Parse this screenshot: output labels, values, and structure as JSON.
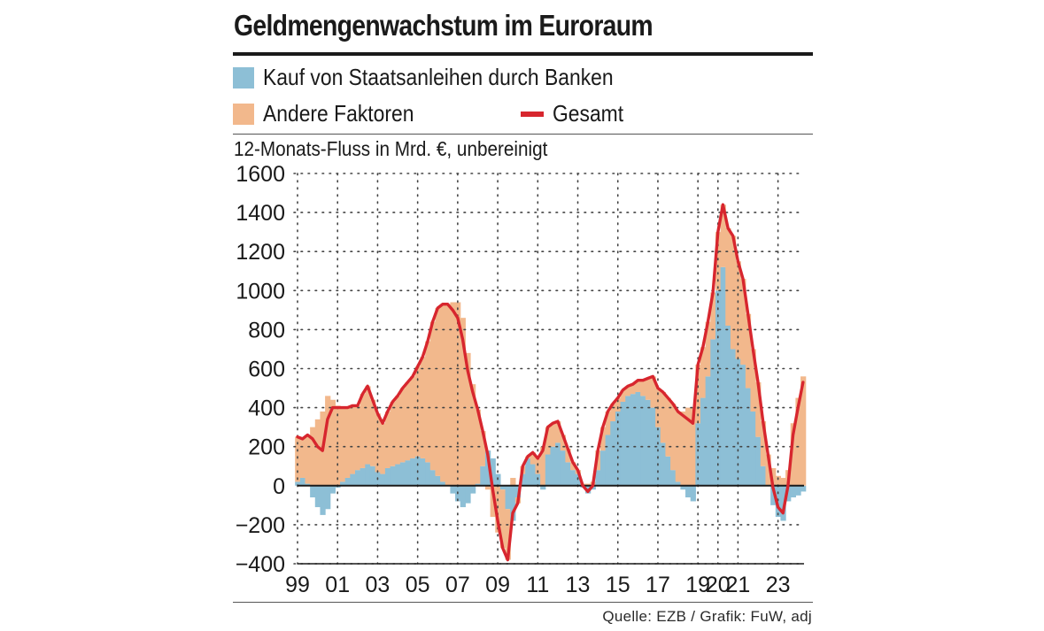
{
  "header": {
    "title": "Geldmengenwachstum im Euroraum"
  },
  "legend": {
    "banks_label": "Kauf von Staatsanleihen durch Banken",
    "other_label": "Andere Faktoren",
    "total_label": "Gesamt"
  },
  "subtitle": "12-Monats-Fluss in Mrd. €, unbereinigt",
  "footer": {
    "source": "Quelle: EZB / Grafik: FuW, adj"
  },
  "colors": {
    "banks": "#8dbfd6",
    "other": "#f2b88c",
    "total": "#d7262e",
    "text": "#1a1a1a",
    "grid": "#444444"
  },
  "chart_data": {
    "type": "area",
    "title": "Geldmengenwachstum im Euroraum",
    "ylabel": "12-Monats-Fluss in Mrd. €, unbereinigt",
    "xlabel": "",
    "ylim": [
      -400,
      1600
    ],
    "xlim": [
      1999.0,
      2024.3
    ],
    "y_ticks": [
      -400,
      -200,
      0,
      200,
      400,
      600,
      800,
      1000,
      1200,
      1400,
      1600
    ],
    "x_ticks": [
      {
        "year": 1999,
        "label": "99"
      },
      {
        "year": 2001,
        "label": "01"
      },
      {
        "year": 2003,
        "label": "03"
      },
      {
        "year": 2005,
        "label": "05"
      },
      {
        "year": 2007,
        "label": "07"
      },
      {
        "year": 2009,
        "label": "09"
      },
      {
        "year": 2011,
        "label": "11"
      },
      {
        "year": 2013,
        "label": "13"
      },
      {
        "year": 2015,
        "label": "15"
      },
      {
        "year": 2017,
        "label": "17"
      },
      {
        "year": 2019,
        "label": "19"
      },
      {
        "year": 2020,
        "label": "20"
      },
      {
        "year": 2021,
        "label": "21"
      },
      {
        "year": 2023,
        "label": "23"
      }
    ],
    "grid": true,
    "x": [
      1999.0,
      1999.25,
      1999.5,
      1999.75,
      2000.0,
      2000.25,
      2000.5,
      2000.75,
      2001.0,
      2001.25,
      2001.5,
      2001.75,
      2002.0,
      2002.25,
      2002.5,
      2002.75,
      2003.0,
      2003.25,
      2003.5,
      2003.75,
      2004.0,
      2004.25,
      2004.5,
      2004.75,
      2005.0,
      2005.25,
      2005.5,
      2005.75,
      2006.0,
      2006.25,
      2006.5,
      2006.75,
      2007.0,
      2007.25,
      2007.5,
      2007.75,
      2008.0,
      2008.25,
      2008.5,
      2008.75,
      2009.0,
      2009.25,
      2009.5,
      2009.75,
      2010.0,
      2010.25,
      2010.5,
      2010.75,
      2011.0,
      2011.25,
      2011.5,
      2011.75,
      2012.0,
      2012.25,
      2012.5,
      2012.75,
      2013.0,
      2013.25,
      2013.5,
      2013.75,
      2014.0,
      2014.25,
      2014.5,
      2014.75,
      2015.0,
      2015.25,
      2015.5,
      2015.75,
      2016.0,
      2016.25,
      2016.5,
      2016.75,
      2017.0,
      2017.25,
      2017.5,
      2017.75,
      2018.0,
      2018.25,
      2018.5,
      2018.75,
      2019.0,
      2019.25,
      2019.5,
      2019.75,
      2020.0,
      2020.25,
      2020.5,
      2020.75,
      2021.0,
      2021.25,
      2021.5,
      2021.75,
      2022.0,
      2022.25,
      2022.5,
      2022.75,
      2023.0,
      2023.25,
      2023.5,
      2023.75,
      2024.0,
      2024.25
    ],
    "series": [
      {
        "name": "Kauf von Staatsanleihen durch Banken",
        "type": "area",
        "values": [
          20,
          40,
          10,
          -60,
          -110,
          -150,
          -120,
          -40,
          -10,
          20,
          40,
          60,
          80,
          90,
          110,
          100,
          70,
          60,
          90,
          100,
          110,
          120,
          130,
          140,
          150,
          140,
          120,
          80,
          50,
          20,
          0,
          -40,
          -80,
          -110,
          -90,
          -40,
          10,
          100,
          180,
          140,
          60,
          -20,
          -120,
          -180,
          -60,
          60,
          140,
          110,
          60,
          -20,
          160,
          200,
          220,
          180,
          120,
          80,
          60,
          -10,
          -40,
          -20,
          80,
          180,
          260,
          330,
          380,
          430,
          460,
          470,
          480,
          460,
          440,
          400,
          300,
          220,
          150,
          80,
          20,
          -20,
          -60,
          -80,
          320,
          450,
          560,
          750,
          1000,
          1120,
          820,
          700,
          650,
          620,
          500,
          380,
          250,
          100,
          0,
          -100,
          -160,
          -180,
          -80,
          -60,
          -50,
          -30
        ]
      },
      {
        "name": "Andere Faktoren",
        "type": "area",
        "values": [
          230,
          200,
          250,
          300,
          340,
          380,
          460,
          440,
          410,
          380,
          360,
          350,
          330,
          380,
          400,
          340,
          300,
          260,
          290,
          330,
          350,
          380,
          400,
          420,
          460,
          520,
          620,
          760,
          860,
          910,
          930,
          940,
          940,
          860,
          680,
          520,
          380,
          180,
          -20,
          -160,
          -240,
          -300,
          -260,
          40,
          -30,
          40,
          10,
          60,
          80,
          200,
          140,
          120,
          110,
          80,
          70,
          40,
          20,
          10,
          10,
          20,
          100,
          120,
          120,
          90,
          70,
          60,
          50,
          50,
          60,
          80,
          110,
          160,
          200,
          260,
          300,
          340,
          360,
          380,
          400,
          400,
          300,
          260,
          280,
          240,
          300,
          320,
          500,
          580,
          500,
          440,
          380,
          320,
          280,
          230,
          160,
          90,
          50,
          40,
          80,
          320,
          450,
          560
        ]
      },
      {
        "name": "Gesamt",
        "type": "line",
        "values": [
          250,
          240,
          260,
          240,
          200,
          180,
          340,
          400,
          400,
          400,
          400,
          410,
          410,
          470,
          510,
          440,
          370,
          320,
          380,
          430,
          460,
          500,
          530,
          560,
          610,
          660,
          740,
          840,
          910,
          930,
          930,
          900,
          860,
          750,
          590,
          480,
          390,
          280,
          160,
          -20,
          -180,
          -320,
          -380,
          -140,
          -90,
          100,
          150,
          170,
          140,
          180,
          300,
          320,
          330,
          260,
          190,
          120,
          80,
          0,
          -30,
          0,
          180,
          300,
          380,
          420,
          450,
          490,
          510,
          520,
          540,
          540,
          550,
          560,
          500,
          480,
          450,
          420,
          380,
          360,
          340,
          320,
          620,
          710,
          840,
          990,
          1300,
          1440,
          1320,
          1280,
          1150,
          1060,
          880,
          700,
          530,
          330,
          160,
          -10,
          -110,
          -140,
          0,
          260,
          400,
          530
        ]
      }
    ]
  }
}
